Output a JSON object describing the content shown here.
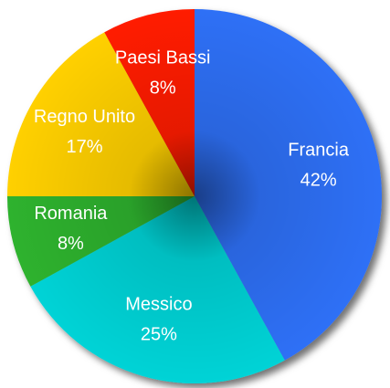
{
  "chart_data": {
    "type": "pie",
    "categories": [
      "Francia",
      "Messico",
      "Romania",
      "Regno Unito",
      "Paesi Bassi"
    ],
    "values": [
      42,
      25,
      8,
      17,
      8
    ],
    "value_labels": [
      "42%",
      "25%",
      "8%",
      "17%",
      "8%"
    ],
    "colors": [
      "#2f6ff6",
      "#00d3d6",
      "#2eb22e",
      "#ffd000",
      "#ff1a00"
    ],
    "start_angle": 0,
    "direction": "clockwise"
  }
}
